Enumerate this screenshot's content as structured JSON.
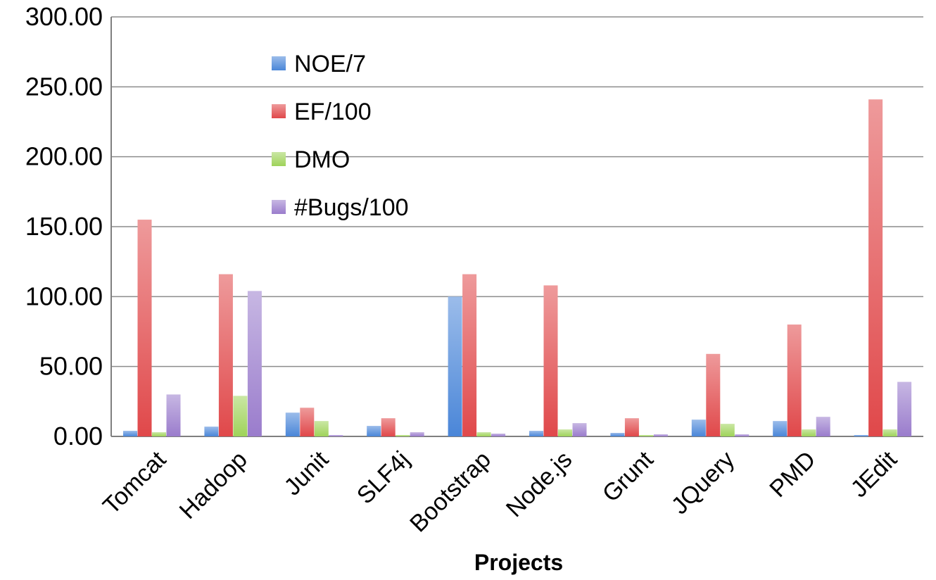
{
  "chart_data": {
    "type": "bar",
    "xlabel": "Projects",
    "ylabel": "",
    "ylim": [
      0,
      300
    ],
    "yticks": [
      "0.00",
      "50.00",
      "100.00",
      "150.00",
      "200.00",
      "250.00",
      "300.00"
    ],
    "grid": true,
    "legend_position": "top-left",
    "categories": [
      "Tomcat",
      "Hadoop",
      "Junit",
      "SLF4j",
      "Bootstrap",
      "Node.js",
      "Grunt",
      "JQuery",
      "PMD",
      "JEdit"
    ],
    "series": [
      {
        "name": "NOE/7",
        "color": "#4a86d8",
        "values": [
          4,
          7,
          17,
          7.5,
          100,
          4,
          2.5,
          12,
          11,
          1
        ]
      },
      {
        "name": "EF/100",
        "color": "#e0484a",
        "values": [
          155,
          116,
          20.5,
          13,
          116,
          108,
          13,
          59,
          80,
          241
        ]
      },
      {
        "name": "DMO",
        "color": "#9fd35a",
        "values": [
          3,
          29,
          11,
          1,
          3,
          5,
          1,
          9,
          5,
          5
        ]
      },
      {
        "name": "#Bugs/100",
        "color": "#9a7ccc",
        "values": [
          30,
          104,
          1,
          3,
          2,
          9.5,
          1.5,
          1.5,
          14,
          39
        ]
      }
    ]
  }
}
